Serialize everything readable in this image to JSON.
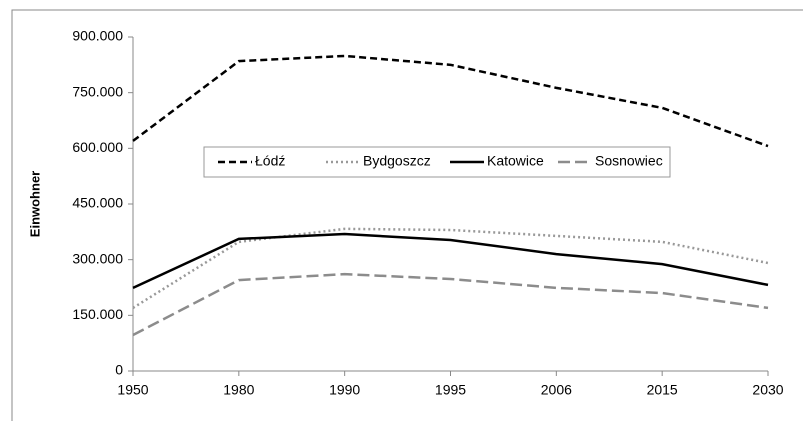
{
  "chart_data": {
    "type": "line",
    "y_label": "Einwohner",
    "categories": [
      "1950",
      "1980",
      "1990",
      "1995",
      "2006",
      "2015",
      "2030"
    ],
    "series": [
      {
        "name": "Łódź",
        "color": "#000000",
        "dash": "dashed",
        "values": [
          620000,
          835000,
          849000,
          825000,
          763000,
          709000,
          606000
        ]
      },
      {
        "name": "Bydgoszcz",
        "color": "#999999",
        "dash": "dotted",
        "values": [
          170000,
          348000,
          383000,
          380000,
          364000,
          348000,
          291000
        ]
      },
      {
        "name": "Katowice",
        "color": "#000000",
        "dash": "solid",
        "values": [
          224000,
          356000,
          369000,
          353000,
          315000,
          288000,
          232000
        ]
      },
      {
        "name": "Sosnowiec",
        "color": "#8c8c8c",
        "dash": "longdash",
        "values": [
          97000,
          245000,
          261000,
          248000,
          224000,
          210000,
          170000
        ]
      }
    ],
    "ylim": [
      0,
      900000
    ],
    "yticks": [
      0,
      {
        "value": 150000,
        "label": "150.000"
      },
      {
        "value": 300000,
        "label": "300.000"
      },
      {
        "value": 450000,
        "label": "450.000"
      },
      {
        "value": 600000,
        "label": "600.000"
      },
      {
        "value": 750000,
        "label": "750.000"
      },
      {
        "value": 900000,
        "label": "900.000"
      }
    ],
    "grid": false,
    "legend": "center"
  }
}
